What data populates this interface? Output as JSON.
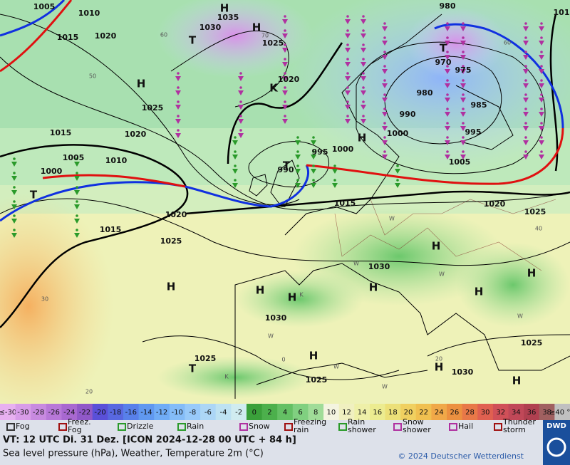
{
  "map": {
    "pressure_labels": [
      "1005",
      "1010",
      "1015",
      "1020",
      "1035",
      "1030",
      "1025",
      "1020",
      "980",
      "970",
      "975",
      "980",
      "985",
      "990",
      "1000",
      "995",
      "995",
      "1000",
      "990",
      "1025",
      "1015",
      "1020",
      "1005",
      "1010",
      "1000",
      "1005",
      "1020",
      "1015",
      "1025",
      "1015",
      "1020",
      "1025",
      "1030",
      "1030",
      "1025",
      "1025",
      "1030",
      "1025",
      "101"
    ],
    "temperature_labels": [
      "60",
      "50",
      "70",
      "60",
      "40",
      "30",
      "20",
      "0",
      "20"
    ],
    "centers": [
      "H",
      "H",
      "T",
      "H",
      "K",
      "H",
      "T",
      "T",
      "T",
      "H",
      "H",
      "H",
      "H",
      "H",
      "H",
      "H",
      "H",
      "T",
      "H",
      "H"
    ],
    "weather_letters": [
      "W",
      "W",
      "W",
      "K",
      "W",
      "W",
      "K",
      "W",
      "W"
    ]
  },
  "legend": {
    "colorbar": {
      "labels": [
        "≤-30",
        -30,
        -28,
        -26,
        -24,
        -22,
        -20,
        -18,
        -16,
        -14,
        -12,
        -10,
        -8,
        -6,
        -4,
        -2,
        0,
        2,
        4,
        6,
        8,
        10,
        12,
        14,
        16,
        18,
        20,
        22,
        24,
        26,
        28,
        30,
        32,
        34,
        36,
        38,
        "≥40 °C"
      ],
      "colors": [
        "#e8b0f0",
        "#d89ce8",
        "#c88ae0",
        "#b878d8",
        "#a868d0",
        "#9058c8",
        "#5a50d8",
        "#5868e0",
        "#5880ea",
        "#6098f0",
        "#70acf6",
        "#84bcf8",
        "#98cafa",
        "#acd6f6",
        "#bee2f2",
        "#d0ecf0",
        "#3aa03a",
        "#4cb04c",
        "#64c064",
        "#80d080",
        "#a0dc98",
        "#f4f4e0",
        "#f0f0c0",
        "#eef0a8",
        "#ecec90",
        "#ece078",
        "#f0d060",
        "#f0c050",
        "#f0a848",
        "#ec9040",
        "#e87848",
        "#e06050",
        "#d05058",
        "#c04858",
        "#b04050",
        "#a06060",
        "#c0c0c0"
      ]
    },
    "symbols": [
      [
        "Fog"
      ],
      [
        "Freez.",
        "Fog"
      ],
      [
        "Drizzle"
      ],
      [
        "Rain"
      ],
      [
        "Snow"
      ],
      [
        "Freezing",
        "rain"
      ],
      [
        "Rain",
        "shower"
      ],
      [
        "Snow",
        "shower"
      ],
      [
        "Hail"
      ],
      [
        "Thunder",
        "storm"
      ]
    ]
  },
  "footer": {
    "valid_time": "VT: 12 UTC Di.  31 Dez. [ICON 2024-12-28  00 UTC + 84 h]",
    "description": "Sea level pressure (hPa), Weather, Temperature 2m (°C)",
    "copyright": "© 2024 Deutscher Wetterdienst",
    "logo": "DWD"
  }
}
